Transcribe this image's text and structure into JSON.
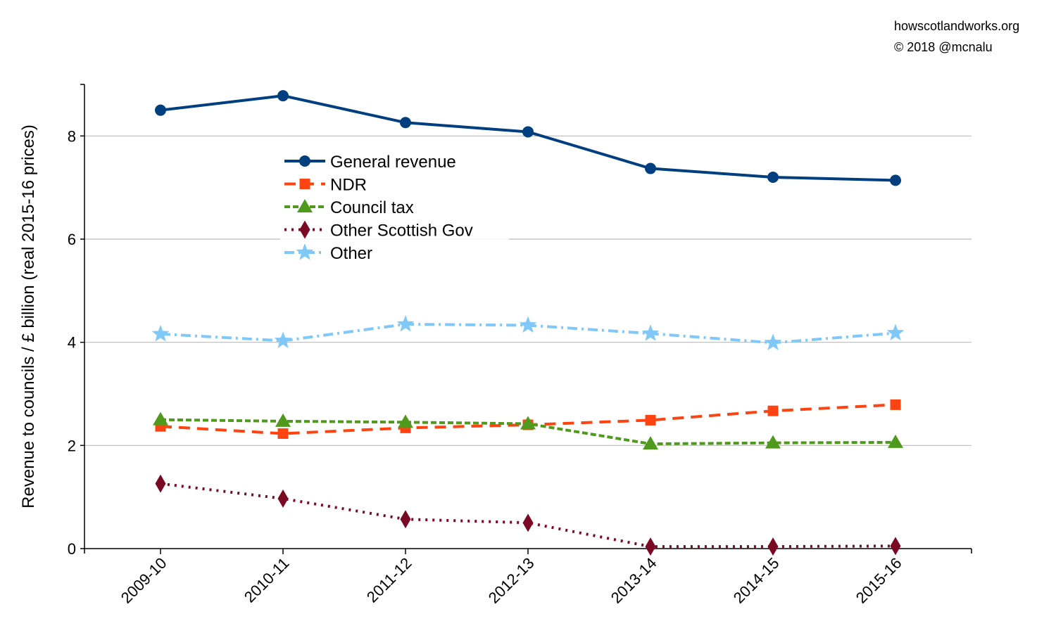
{
  "credit": {
    "site": "howscotlandworks.org",
    "copyright": "© 2018  @mcnalu"
  },
  "chart_data": {
    "type": "line",
    "title": "",
    "xlabel": "",
    "ylabel": "Revenue to councils / £ billion (real 2015-16 prices)",
    "categories": [
      "2009-10",
      "2010-11",
      "2011-12",
      "2012-13",
      "2013-14",
      "2014-15",
      "2015-16"
    ],
    "ylim": [
      0,
      9
    ],
    "yticks": [
      0,
      2,
      4,
      6,
      8
    ],
    "grid": true,
    "legend_position": "upper-left",
    "series": [
      {
        "name": "General revenue",
        "color": "#003f7f",
        "marker": "circle",
        "dash": "solid",
        "values": [
          8.5,
          8.78,
          8.26,
          8.08,
          7.37,
          7.2,
          7.14
        ]
      },
      {
        "name": "NDR",
        "color": "#ff4411",
        "marker": "square",
        "dash": "dashed",
        "values": [
          2.37,
          2.23,
          2.34,
          2.4,
          2.49,
          2.67,
          2.79
        ]
      },
      {
        "name": "Council tax",
        "color": "#4f9a1d",
        "marker": "triangle",
        "dash": "short-dashed",
        "values": [
          2.5,
          2.47,
          2.45,
          2.42,
          2.03,
          2.05,
          2.06
        ]
      },
      {
        "name": "Other Scottish Gov",
        "color": "#7a0a23",
        "marker": "diamond",
        "dash": "dotted",
        "values": [
          1.26,
          0.97,
          0.57,
          0.5,
          0.04,
          0.04,
          0.05
        ]
      },
      {
        "name": "Other",
        "color": "#7fc8f8",
        "marker": "star",
        "dash": "dash-dot",
        "values": [
          4.16,
          4.03,
          4.35,
          4.33,
          4.17,
          3.99,
          4.18
        ]
      }
    ]
  }
}
